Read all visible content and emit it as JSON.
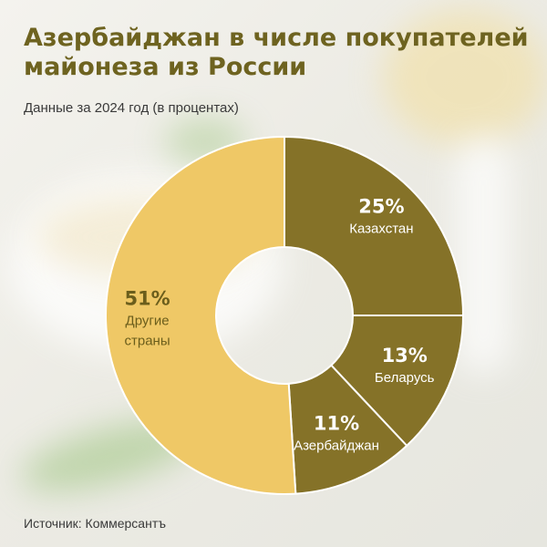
{
  "header": {
    "title_line1": "Азербайджан в числе покупателей",
    "title_line2": "майонеза из России",
    "subtitle": "Данные за 2024 год (в процентах)"
  },
  "footer": {
    "source": "Источник: Коммерсантъ"
  },
  "chart_data": {
    "type": "pie",
    "donut": true,
    "slices": [
      {
        "label": "Казахстан",
        "value": 25,
        "value_label": "25%",
        "color": "#857228",
        "text_color": "#ffffff"
      },
      {
        "label": "Беларусь",
        "value": 13,
        "value_label": "13%",
        "color": "#857228",
        "text_color": "#ffffff"
      },
      {
        "label": "Азербайджан",
        "value": 11,
        "value_label": "11%",
        "color": "#857228",
        "text_color": "#ffffff"
      },
      {
        "label": "Другие страны",
        "value": 51,
        "value_label": "51%",
        "color": "#efc866",
        "text_color": "#6b5e1c",
        "label_lines": [
          "Другие",
          "страны"
        ]
      }
    ],
    "separator_color": "#ffffff"
  }
}
